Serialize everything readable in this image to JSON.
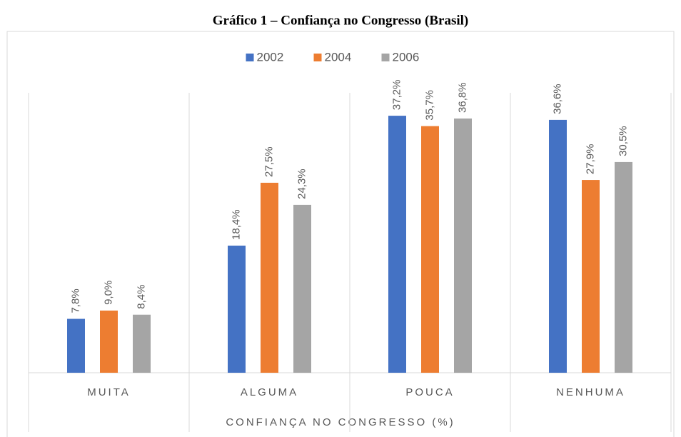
{
  "chart_data": {
    "type": "bar",
    "title": "Gráfico 1 – Confiança no Congresso (Brasil)",
    "x_label": "CONFIANÇA NO CONGRESSO (%)",
    "categories": [
      "MUITA",
      "ALGUMA",
      "POUCA",
      "NENHUMA"
    ],
    "series": [
      {
        "name": "2002",
        "color": "#4472c4",
        "values": [
          7.8,
          18.4,
          37.2,
          36.6
        ],
        "value_labels": [
          "7,8%",
          "18,4%",
          "37,2%",
          "36,6%"
        ]
      },
      {
        "name": "2004",
        "color": "#ed7d31",
        "values": [
          9.0,
          27.5,
          35.7,
          27.9
        ],
        "value_labels": [
          "9,0%",
          "27,5%",
          "35,7%",
          "27,9%"
        ]
      },
      {
        "name": "2006",
        "color": "#a5a5a5",
        "values": [
          8.4,
          24.3,
          36.8,
          30.5
        ],
        "value_labels": [
          "8,4%",
          "24,3%",
          "36,8%",
          "30,5%"
        ]
      }
    ],
    "ylim": [
      0,
      40
    ],
    "legend": "top"
  }
}
